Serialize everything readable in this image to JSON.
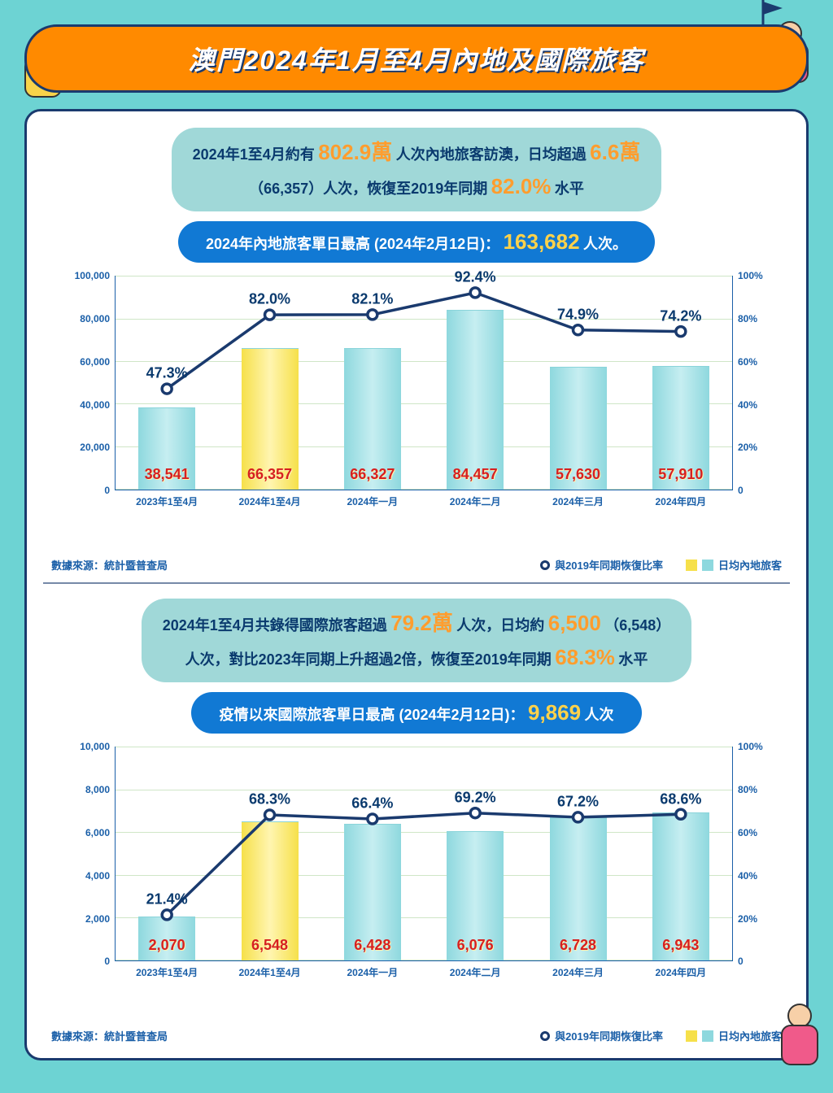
{
  "header": {
    "title": "澳門2024年1月至4月內地及國際旅客"
  },
  "colors": {
    "background": "#6dd3d3",
    "header_bg": "#ff8a00",
    "panel_border": "#1a3a6e",
    "bar_highlight": "#f6e04a",
    "bar_teal": "#8ed8de",
    "line": "#1a3a6e",
    "value_red": "#d62020",
    "text_navy": "#0a3a6e",
    "axis": "#1a5fa8",
    "pill_blue": "#1179d4",
    "pill_teal": "#a0d8d8"
  },
  "section1": {
    "summary": {
      "p1a": "2024年1至4月約有",
      "p1b": "802.9萬",
      "p1c": "人次內地旅客訪澳，日均超過",
      "p1d": "6.6萬",
      "p2a": "（66,357）人次，恢復至2019年同期",
      "p2b": "82.0%",
      "p2c": "水平"
    },
    "highlight": {
      "t1": "2024年內地旅客單日最高 (2024年2月12日)：",
      "t2": "163,682",
      "t3": "人次。"
    },
    "chart": {
      "type": "bar+line",
      "y_left_max": 100000,
      "y_left_step": 20000,
      "y_left_ticks": [
        "0",
        "20,000",
        "40,000",
        "60,000",
        "80,000",
        "100,000"
      ],
      "y_right_max": 100,
      "y_right_step": 20,
      "y_right_ticks": [
        "0",
        "20%",
        "40%",
        "60%",
        "80%",
        "100%"
      ],
      "categories": [
        "2023年1至4月",
        "2024年1至4月",
        "2024年一月",
        "2024年二月",
        "2024年三月",
        "2024年四月"
      ],
      "bars": [
        38541,
        66357,
        66327,
        84457,
        57630,
        57910
      ],
      "bar_labels": [
        "38,541",
        "66,357",
        "66,327",
        "84,457",
        "57,630",
        "57,910"
      ],
      "bar_highlight_index": 1,
      "line_pct": [
        47.3,
        82.0,
        82.1,
        92.4,
        74.9,
        74.2
      ],
      "line_labels": [
        "47.3%",
        "82.0%",
        "82.1%",
        "92.4%",
        "74.9%",
        "74.2%"
      ]
    }
  },
  "section2": {
    "summary": {
      "p1a": "2024年1至4月共錄得國際旅客超過",
      "p1b": "79.2萬",
      "p1c": "人次，日均約",
      "p1d": "6,500",
      "p1e": "（6,548）",
      "p2a": "人次，對比2023年同期上升超過2倍，恢復至2019年同期",
      "p2b": "68.3%",
      "p2c": "水平"
    },
    "highlight": {
      "t1": "疫情以來國際旅客單日最高 (2024年2月12日)：",
      "t2": "9,869",
      "t3": "人次"
    },
    "chart": {
      "type": "bar+line",
      "y_left_max": 10000,
      "y_left_step": 2000,
      "y_left_ticks": [
        "0",
        "2,000",
        "4,000",
        "6,000",
        "8,000",
        "10,000"
      ],
      "y_right_max": 100,
      "y_right_step": 20,
      "y_right_ticks": [
        "0",
        "20%",
        "40%",
        "60%",
        "80%",
        "100%"
      ],
      "categories": [
        "2023年1至4月",
        "2024年1至4月",
        "2024年一月",
        "2024年二月",
        "2024年三月",
        "2024年四月"
      ],
      "bars": [
        2070,
        6548,
        6428,
        6076,
        6728,
        6943
      ],
      "bar_labels": [
        "2,070",
        "6,548",
        "6,428",
        "6,076",
        "6,728",
        "6,943"
      ],
      "bar_highlight_index": 1,
      "line_pct": [
        21.4,
        68.3,
        66.4,
        69.2,
        67.2,
        68.6
      ],
      "line_labels": [
        "21.4%",
        "68.3%",
        "66.4%",
        "69.2%",
        "67.2%",
        "68.6%"
      ]
    }
  },
  "legend": {
    "source": "數據來源：統計暨普查局",
    "line": "與2019年同期恢復比率",
    "bars": "日均內地旅客"
  }
}
